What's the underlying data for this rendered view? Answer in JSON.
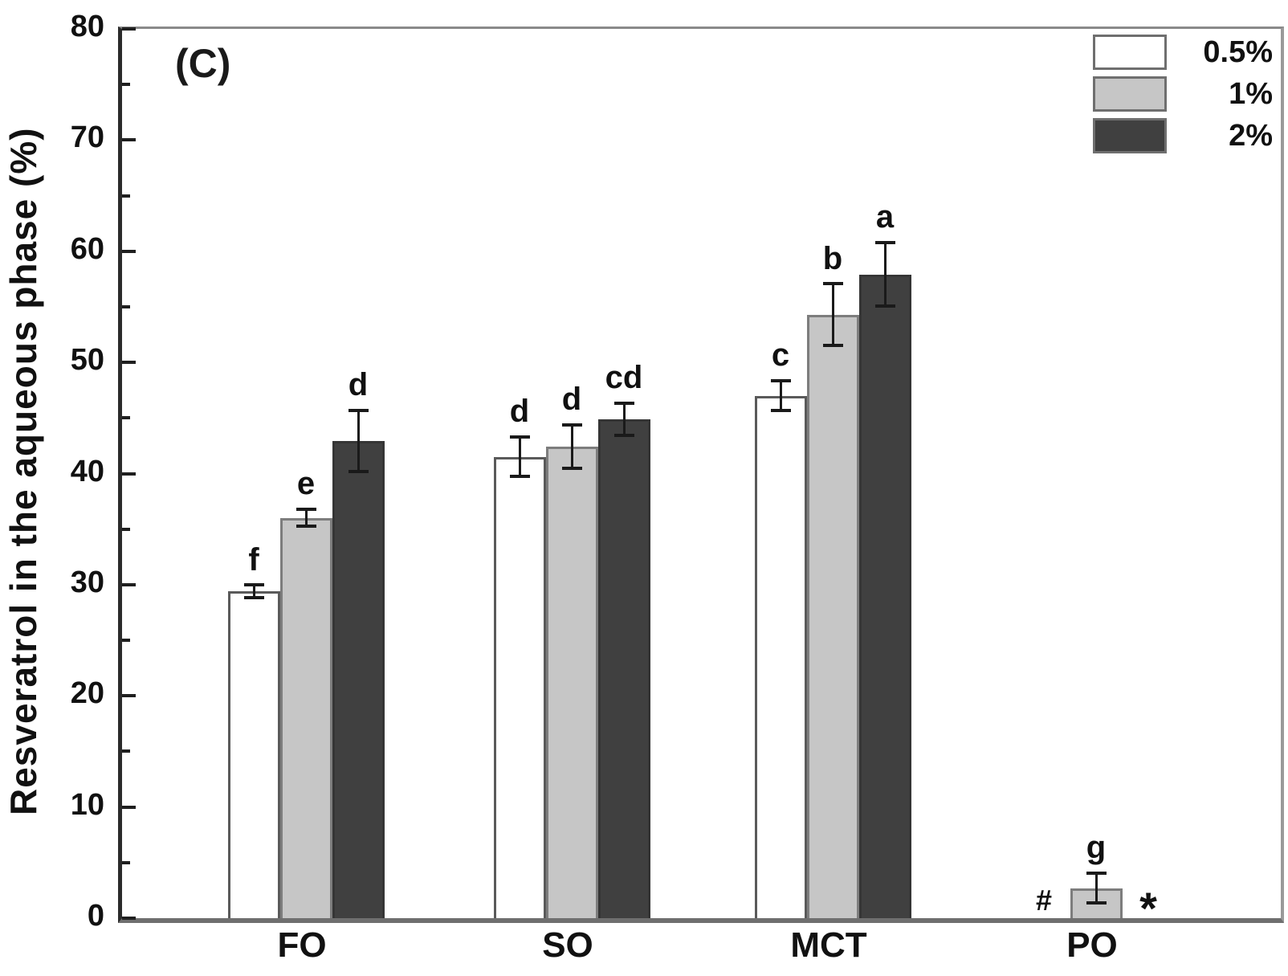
{
  "figure": {
    "panel_label": "(C)"
  },
  "chart_data": {
    "type": "bar",
    "title": "",
    "panel_label": "(C)",
    "xlabel": "",
    "ylabel": "Resveratrol in the aqueous phase (%)",
    "ylim": [
      0,
      80
    ],
    "y_major_step": 10,
    "y_minor_step": 5,
    "y_tick_labels": [
      "0",
      "10",
      "20",
      "30",
      "40",
      "50",
      "60",
      "70",
      "80"
    ],
    "grid": "off",
    "legend_position": "top-right-inside",
    "categories": [
      "FO",
      "SO",
      "MCT",
      "PO"
    ],
    "series": [
      {
        "name": "0.5%",
        "fill_color": "#ffffff",
        "border_color": "#5a5a5a",
        "values": [
          29.4,
          41.5,
          47.0,
          0
        ],
        "errors": [
          0.7,
          1.9,
          1.5,
          0
        ],
        "sig_letters": [
          "f",
          "d",
          "c",
          "#"
        ]
      },
      {
        "name": "1%",
        "fill_color": "#c6c6c6",
        "border_color": "#7d7d7d",
        "values": [
          36.0,
          42.4,
          54.3,
          2.7
        ],
        "errors": [
          0.9,
          2.1,
          2.9,
          1.5
        ],
        "sig_letters": [
          "e",
          "d",
          "b",
          "g"
        ]
      },
      {
        "name": "2%",
        "fill_color": "#404040",
        "border_color": "#353535",
        "values": [
          42.9,
          44.9,
          57.9,
          0
        ],
        "errors": [
          2.9,
          1.6,
          3.0,
          0
        ],
        "sig_letters": [
          "d",
          "cd",
          "a",
          "*"
        ]
      }
    ],
    "zero_value_note": "PO 0.5% and 2% bars are absent; marked with # and * at the baseline"
  }
}
